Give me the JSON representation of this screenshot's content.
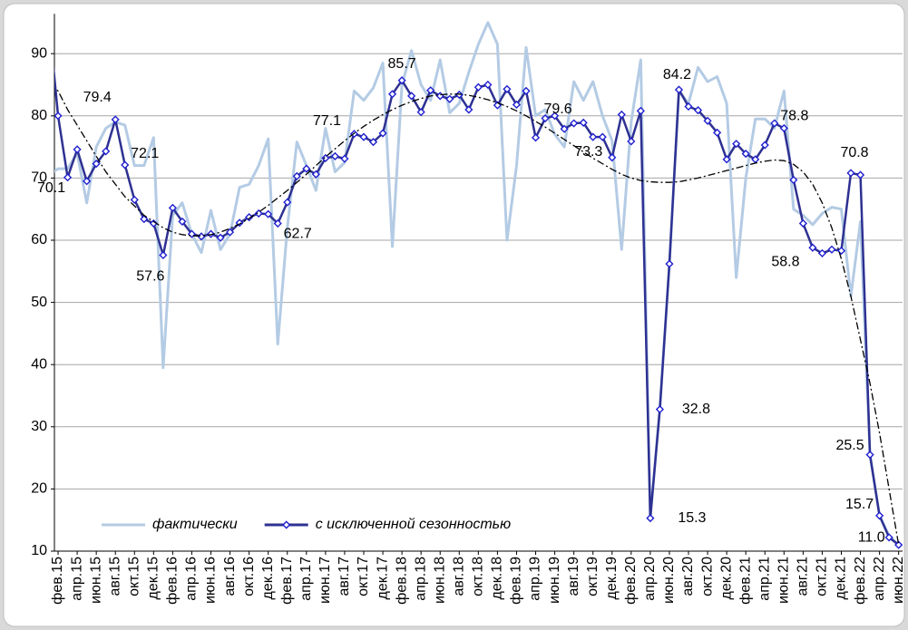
{
  "chart_data": {
    "type": "line",
    "categories": [
      null,
      "фев.15",
      null,
      "апр.15",
      null,
      "июн.15",
      null,
      "авг.15",
      null,
      "окт.15",
      null,
      "дек.15",
      null,
      "фев.16",
      null,
      "апр.16",
      null,
      "июн.16",
      null,
      "авг.16",
      null,
      "окт.16",
      null,
      "дек.16",
      null,
      "фев.17",
      null,
      "апр.17",
      null,
      "июн.17",
      null,
      "авг.17",
      null,
      "окт.17",
      null,
      "дек.17",
      null,
      "фев.18",
      null,
      "апр.18",
      null,
      "июн.18",
      null,
      "авг.18",
      null,
      "окт.18",
      null,
      "дек.18",
      null,
      "фев.19",
      null,
      "апр.19",
      null,
      "июн.19",
      null,
      "авг.19",
      null,
      "окт.19",
      null,
      "дек.19",
      null,
      "фев.20",
      null,
      "апр.20",
      null,
      "июн.20",
      null,
      "авг.20",
      null,
      "окт.20",
      null,
      "дек.20",
      null,
      "фев.21",
      null,
      "апр.21",
      null,
      "июн.21",
      null,
      "авг.21",
      null,
      "окт.21",
      null,
      "дек.21",
      null,
      "фев.22",
      null,
      "апр.22",
      null,
      "июн.22"
    ],
    "series": [
      {
        "name": "фактически",
        "color": "#b4cbe4",
        "values": [
          70.5,
          71.5,
          71.5,
          74,
          66,
          75,
          78,
          79,
          78.5,
          72,
          72,
          76.5,
          39.5,
          64,
          66,
          61,
          58,
          64.8,
          58.5,
          61,
          68.5,
          69,
          72,
          76.3,
          43.3,
          62,
          75.8,
          72,
          68,
          78,
          71,
          72.5,
          84,
          82.5,
          84.5,
          88.5,
          59,
          85,
          90.5,
          85,
          82.5,
          89,
          80.5,
          82,
          87,
          91.5,
          95,
          91.5,
          60,
          72,
          91,
          80,
          81,
          77,
          75,
          85.5,
          82.5,
          85.5,
          80,
          76,
          58.5,
          79,
          89,
          15.3,
          33,
          56,
          84,
          82,
          87.8,
          85.5,
          86.3,
          82,
          54,
          70,
          79.5,
          79.5,
          78,
          84,
          65,
          64,
          62.5,
          64.3,
          65.3,
          65,
          51,
          63,
          25.5,
          15.7,
          12.5,
          11
        ]
      },
      {
        "name": "с исключенной сезонностью",
        "color": "#2e3192",
        "marker": "diamond",
        "values": [
          96,
          80,
          70.1,
          74.6,
          69.5,
          72.3,
          74.3,
          79.4,
          72.1,
          66.5,
          63.4,
          62.7,
          57.6,
          65.2,
          63,
          61,
          60.6,
          61,
          60.4,
          61.3,
          62.8,
          63.7,
          64.3,
          64.2,
          62.7,
          66.1,
          70.3,
          71.5,
          70.6,
          73.2,
          73.5,
          73.1,
          77.1,
          76.6,
          75.8,
          77.2,
          83.5,
          85.7,
          83.2,
          80.6,
          84.1,
          83.2,
          82.7,
          83.4,
          81,
          84.6,
          85,
          81.7,
          84.3,
          81.8,
          84,
          76.5,
          79.6,
          80,
          77.9,
          78.8,
          78.9,
          76.6,
          76.6,
          73.3,
          80.2,
          75.9,
          80.8,
          15.3,
          32.8,
          56.2,
          84.2,
          81.5,
          80.9,
          79.2,
          77.3,
          73,
          75.5,
          73.9,
          73,
          75.3,
          78.8,
          78,
          69.7,
          62.7,
          58.8,
          57.9,
          58.5,
          58.3,
          70.8,
          70.5,
          25.5,
          15.7,
          12.2,
          11
        ],
        "value_labels": [
          null,
          null,
          "70.1",
          null,
          null,
          null,
          null,
          "79.4",
          "72.1",
          null,
          null,
          null,
          "57.6",
          null,
          null,
          null,
          null,
          null,
          null,
          null,
          null,
          null,
          null,
          null,
          "62.7",
          null,
          null,
          null,
          null,
          null,
          null,
          null,
          "77.1",
          null,
          null,
          null,
          null,
          "85.7",
          null,
          null,
          null,
          null,
          null,
          null,
          null,
          null,
          null,
          null,
          null,
          null,
          null,
          null,
          "79.6",
          null,
          null,
          null,
          null,
          null,
          null,
          "73.3",
          null,
          null,
          null,
          "15.3",
          "32.8",
          null,
          "84.2",
          null,
          null,
          null,
          null,
          null,
          null,
          null,
          null,
          null,
          "78.8",
          null,
          null,
          null,
          "58.8",
          null,
          null,
          null,
          "70.8",
          null,
          "25.5",
          "15.7",
          null,
          "11.0"
        ]
      },
      {
        "color": "#000000",
        "dash": "dashdot",
        "values": [
          85,
          84,
          81,
          78.5,
          76,
          73.5,
          71,
          69,
          67,
          65.5,
          64,
          63,
          62,
          61.3,
          60.9,
          60.7,
          60.7,
          60.9,
          61.3,
          61.9,
          62.6,
          63.5,
          64.5,
          65.6,
          66.8,
          68,
          69.3,
          70.6,
          72,
          73.4,
          74.7,
          76,
          77.2,
          78.3,
          79.3,
          80.2,
          81,
          81.7,
          82.3,
          82.8,
          83.2,
          83.4,
          83.5,
          83.5,
          83.3,
          83,
          82.6,
          82.1,
          81.5,
          80.8,
          80,
          79.1,
          78.2,
          77.2,
          76.2,
          75.2,
          74.2,
          73.2,
          72.3,
          71.4,
          70.6,
          70,
          69.6,
          69.4,
          69.3,
          69.3,
          69.4,
          69.7,
          70,
          70.4,
          70.8,
          71.2,
          71.6,
          72,
          72.4,
          72.7,
          72.9,
          72.8,
          72.2,
          71,
          69,
          66,
          62,
          57,
          51,
          44,
          37,
          29,
          20,
          11
        ]
      }
    ],
    "ylim": [
      10,
      96.4
    ],
    "yticks": [
      10,
      20,
      30,
      40,
      50,
      60,
      70,
      80,
      90
    ],
    "grid": true,
    "legend": "lower left"
  }
}
